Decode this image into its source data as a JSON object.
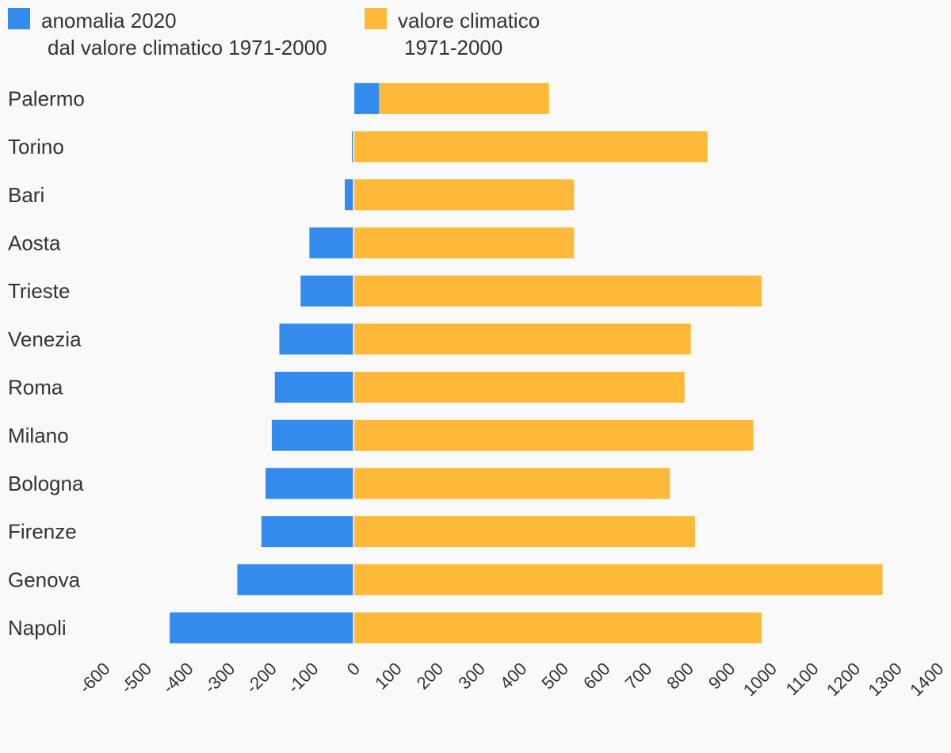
{
  "chart_data": {
    "type": "bar",
    "orientation": "horizontal",
    "stacked": true,
    "categories": [
      "Palermo",
      "Torino",
      "Bari",
      "Aosta",
      "Trieste",
      "Venezia",
      "Roma",
      "Milano",
      "Bologna",
      "Firenze",
      "Genova",
      "Napoli"
    ],
    "series": [
      {
        "name_lines": [
          "anomalia 2020",
          "dal valore climatico 1971-2000"
        ],
        "color": "#338ced",
        "values": [
          62,
          -3,
          -20,
          -105,
          -126,
          -177,
          -188,
          -195,
          -210,
          -220,
          -278,
          -440
        ]
      },
      {
        "name_lines": [
          "valore climatico",
          "1971-2000"
        ],
        "color": "#ffb938",
        "values": [
          470,
          850,
          530,
          530,
          980,
          810,
          795,
          960,
          760,
          820,
          1270,
          980
        ]
      }
    ],
    "xlim": [
      -600,
      1400
    ],
    "xticks": [
      "-600",
      "-500",
      "-400",
      "-300",
      "-200",
      "-100",
      "0",
      "100",
      "200",
      "300",
      "400",
      "500",
      "600",
      "700",
      "800",
      "900",
      "1000",
      "1100",
      "1200",
      "1300",
      "1400"
    ],
    "grid": false,
    "legend_position": "top"
  }
}
